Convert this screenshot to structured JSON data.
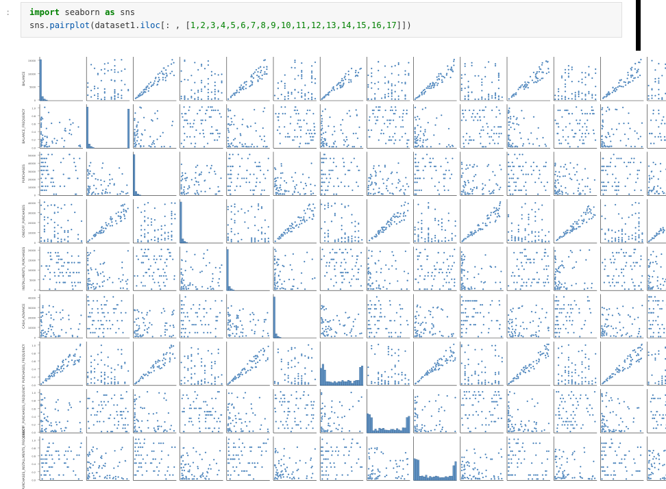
{
  "cell": {
    "prompt": ":",
    "line1": {
      "kw1": "import",
      "mod": " seaborn ",
      "kw2": "as",
      "alias": " sns"
    },
    "line2": {
      "prefix": "sns.",
      "func": "pairplot",
      "open": "(dataset1.",
      "attr": "iloc",
      "args_open": "[: , [",
      "nums": "1,2,3,4,5,6,7,8,9,10,11,12,13,14,15,16,17",
      "args_close": "]])"
    }
  },
  "colors": {
    "point": "#3a78b5",
    "point_edge": "#ffffff",
    "keyword": "#008000"
  },
  "chart_data": {
    "type": "scatter",
    "title": "",
    "variables": [
      "BALANCE",
      "BALANCE_FREQUENCY",
      "PURCHASES",
      "ONEOFF_PURCHASES",
      "INSTALLMENTS_PURCHASES",
      "CASH_ADVANCE",
      "PURCHASES_FREQUENCY",
      "ONEOFF_PURCHASES_FREQUENCY",
      "PURCHASES_INSTALLMENTS_FREQUENCY"
    ],
    "y_ticks": [
      [
        "0",
        "5000",
        "10000",
        "15000"
      ],
      [
        "0.0",
        "0.2",
        "0.4",
        "0.6",
        "0.8",
        "1.0"
      ],
      [
        "0",
        "10000",
        "20000",
        "30000",
        "40000",
        "50000"
      ],
      [
        "0",
        "10000",
        "20000",
        "30000",
        "40000"
      ],
      [
        "0",
        "5000",
        "10000",
        "15000",
        "20000"
      ],
      [
        "0",
        "10000",
        "20000",
        "30000",
        "40000"
      ],
      [
        "0.0",
        "0.2",
        "0.4",
        "0.6",
        "0.8",
        "1.0"
      ],
      [
        "0.0",
        "0.2",
        "0.4",
        "0.6",
        "0.8",
        "1.0"
      ],
      [
        "0.0",
        "0.2",
        "0.4",
        "0.6",
        "0.8",
        "1.0"
      ]
    ],
    "grid": false,
    "diagonal": "histogram",
    "visible_columns": 14
  }
}
